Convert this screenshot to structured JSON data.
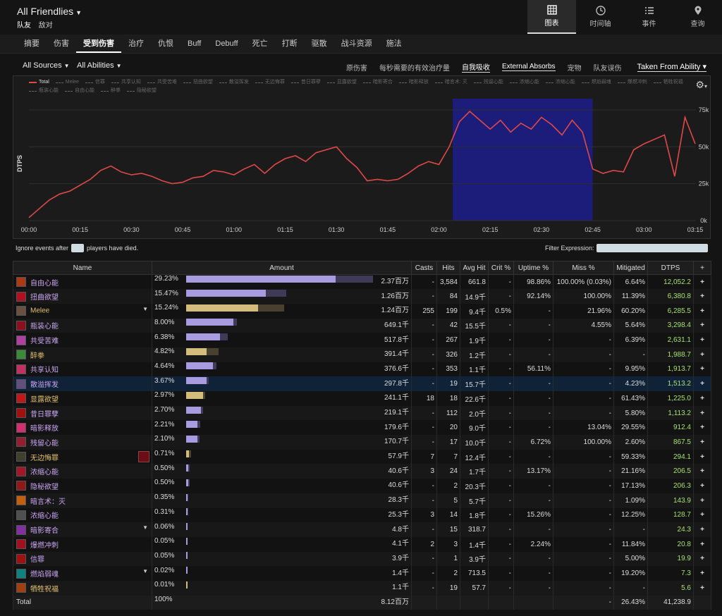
{
  "header": {
    "title": "All Friendlies",
    "subtabs": [
      "队友",
      "敌对"
    ]
  },
  "views": [
    {
      "label": "图表",
      "icon": "table-icon",
      "active": true
    },
    {
      "label": "时间轴",
      "icon": "clock-icon",
      "active": false
    },
    {
      "label": "事件",
      "icon": "list-icon",
      "active": false
    },
    {
      "label": "查询",
      "icon": "pin-icon",
      "active": false
    }
  ],
  "tabs": [
    {
      "label": "摘要"
    },
    {
      "label": "伤害"
    },
    {
      "label": "受到伤害",
      "active": true
    },
    {
      "label": "治疗"
    },
    {
      "label": "仇恨"
    },
    {
      "label": "Buff"
    },
    {
      "label": "Debuff"
    },
    {
      "label": "死亡"
    },
    {
      "label": "打断"
    },
    {
      "label": "驱散"
    },
    {
      "label": "战斗资源"
    },
    {
      "label": "施法"
    }
  ],
  "filters": {
    "sources": "All Sources",
    "abilities": "All Abilities",
    "options": [
      {
        "label": "原伤害",
        "state": "off"
      },
      {
        "label": "每秒需要的有效治疗量",
        "state": "off"
      },
      {
        "label": "自我吸收",
        "state": "on"
      },
      {
        "label": "External Absorbs",
        "state": "on"
      },
      {
        "label": "宠物",
        "state": "off"
      },
      {
        "label": "队友误伤",
        "state": "off"
      }
    ],
    "taken_from": "Taken From Ability"
  },
  "chart": {
    "legend": [
      "Total",
      "Melee",
      "信罪",
      "共享认知",
      "共受苦难",
      "扭曲欲望",
      "散溢挥发",
      "无边悔罪",
      "昔日罪孽",
      "显露欲望",
      "暗影寄合",
      "暗影释放",
      "暗言术: 灭",
      "残留心能",
      "浓缩心能",
      "浓缩心能",
      "燃焰弱魂",
      "爆燃冲刺",
      "牺牲祝福",
      "瓶装心能",
      "自由心能",
      "醉拳",
      "隐秘欲望"
    ],
    "ylabel": "DTPS"
  },
  "chart_data": {
    "type": "line",
    "ylabel": "DTPS",
    "xlim": [
      0,
      195
    ],
    "ylim": [
      0,
      85000
    ],
    "x_ticks": [
      "00:00",
      "00:15",
      "00:30",
      "00:45",
      "01:00",
      "01:15",
      "01:30",
      "01:45",
      "02:00",
      "02:15",
      "02:30",
      "02:45",
      "03:00",
      "03:15"
    ],
    "y_ticks": [
      "0k",
      "25k",
      "50k",
      "75k"
    ],
    "highlight": {
      "start": "02:04",
      "end": "02:45"
    },
    "series": [
      {
        "name": "Total",
        "color": "#e04848",
        "x": [
          0,
          3,
          6,
          9,
          12,
          15,
          18,
          21,
          24,
          27,
          30,
          33,
          36,
          39,
          42,
          45,
          48,
          51,
          54,
          57,
          60,
          63,
          66,
          69,
          72,
          75,
          78,
          81,
          84,
          87,
          90,
          93,
          96,
          99,
          102,
          105,
          108,
          111,
          114,
          117,
          120,
          123,
          126,
          129,
          132,
          135,
          138,
          141,
          144,
          147,
          150,
          153,
          156,
          159,
          162,
          165,
          168,
          171,
          174,
          177,
          180,
          183,
          186,
          189,
          192,
          195
        ],
        "y": [
          2000,
          8000,
          14000,
          18000,
          20000,
          24000,
          28000,
          34000,
          37000,
          33000,
          31000,
          32000,
          30000,
          27000,
          25000,
          26000,
          29000,
          30000,
          34000,
          33000,
          31000,
          35000,
          38000,
          32000,
          38000,
          42000,
          44000,
          40000,
          46000,
          48000,
          50000,
          42000,
          36000,
          27000,
          28000,
          27000,
          28000,
          32000,
          37000,
          40000,
          38000,
          50000,
          67000,
          74000,
          68000,
          62000,
          68000,
          60000,
          66000,
          62000,
          70000,
          65000,
          58000,
          68000,
          60000,
          35000,
          32000,
          34000,
          33000,
          48000,
          52000,
          55000,
          58000,
          30000,
          70000,
          52000
        ]
      }
    ]
  },
  "ignore": {
    "label_before": "Ignore events after",
    "label_after": "players have died.",
    "value": ""
  },
  "filter_expr": {
    "label": "Filter Expression:",
    "value": ""
  },
  "table": {
    "headers": [
      "Name",
      "Amount",
      "Casts",
      "Hits",
      "Avg Hit",
      "Crit %",
      "Uptime %",
      "Miss %",
      "Mitigated",
      "DTPS",
      "+"
    ],
    "rows": [
      {
        "name": "自由心能",
        "color": "#c9a6f2",
        "icon": "#a83a18",
        "pct": "29.23%",
        "amount": "2.37百万",
        "bar": 0.79,
        "bar2": 0.99,
        "barcolor": "#a99be0",
        "casts": "-",
        "hits": "3,584",
        "avg": "661.8",
        "crit": "-",
        "uptime": "98.86%",
        "miss": "100.00% (0.03%)",
        "mit": "6.64%",
        "dtps": "12,052.2"
      },
      {
        "name": "扭曲欲望",
        "color": "#c9a6f2",
        "icon": "#b01020",
        "pct": "15.47%",
        "amount": "1.26百万",
        "bar": 0.42,
        "bar2": 0.53,
        "barcolor": "#a99be0",
        "casts": "-",
        "hits": "84",
        "avg": "14.9千",
        "crit": "-",
        "uptime": "92.14%",
        "miss": "100.00%",
        "mit": "11.39%",
        "dtps": "6,380.8"
      },
      {
        "name": "Melee",
        "color": "#e0c070",
        "icon": "#6a5040",
        "pct": "15.24%",
        "amount": "1.24百万",
        "bar": 0.38,
        "bar2": 0.52,
        "barcolor": "#d4bc7c",
        "casts": "255",
        "hits": "199",
        "avg": "9.4千",
        "crit": "0.5%",
        "uptime": "-",
        "miss": "21.96%",
        "mit": "60.20%",
        "dtps": "6,285.5",
        "expand": true
      },
      {
        "name": "瓶装心能",
        "color": "#c9a6f2",
        "icon": "#8a1020",
        "pct": "8.00%",
        "amount": "649.1千",
        "bar": 0.25,
        "bar2": 0.27,
        "barcolor": "#a99be0",
        "casts": "-",
        "hits": "42",
        "avg": "15.5千",
        "crit": "-",
        "uptime": "-",
        "miss": "4.55%",
        "mit": "5.64%",
        "dtps": "3,298.4"
      },
      {
        "name": "共受苦难",
        "color": "#c9a6f2",
        "icon": "#b040a0",
        "pct": "6.38%",
        "amount": "517.8千",
        "bar": 0.18,
        "bar2": 0.22,
        "barcolor": "#a99be0",
        "casts": "-",
        "hits": "267",
        "avg": "1.9千",
        "crit": "-",
        "uptime": "-",
        "miss": "-",
        "mit": "6.39%",
        "dtps": "2,631.1"
      },
      {
        "name": "醉拳",
        "color": "#e0c070",
        "icon": "#3a8a3a",
        "pct": "4.82%",
        "amount": "391.4千",
        "bar": 0.11,
        "bar2": 0.17,
        "barcolor": "#d4bc7c",
        "casts": "-",
        "hits": "326",
        "avg": "1.2千",
        "crit": "-",
        "uptime": "-",
        "miss": "-",
        "mit": "-",
        "dtps": "1,988.7"
      },
      {
        "name": "共享认知",
        "color": "#c9a6f2",
        "icon": "#c03060",
        "pct": "4.64%",
        "amount": "376.6千",
        "bar": 0.14,
        "bar2": 0.16,
        "barcolor": "#a99be0",
        "casts": "-",
        "hits": "353",
        "avg": "1.1千",
        "crit": "-",
        "uptime": "56.11%",
        "miss": "-",
        "mit": "9.95%",
        "dtps": "1,913.7"
      },
      {
        "name": "散溢挥发",
        "color": "#c9a6f2",
        "icon": "#605080",
        "pct": "3.67%",
        "amount": "297.8千",
        "bar": 0.11,
        "bar2": 0.12,
        "barcolor": "#a99be0",
        "casts": "-",
        "hits": "19",
        "avg": "15.7千",
        "crit": "-",
        "uptime": "-",
        "miss": "-",
        "mit": "4.23%",
        "dtps": "1,513.2",
        "hl": true
      },
      {
        "name": "显露欲望",
        "color": "#e0c070",
        "icon": "#c01818",
        "pct": "2.97%",
        "amount": "241.1千",
        "bar": 0.09,
        "bar2": 0.1,
        "barcolor": "#d4bc7c",
        "casts": "18",
        "hits": "18",
        "avg": "22.6千",
        "crit": "-",
        "uptime": "-",
        "miss": "-",
        "mit": "61.43%",
        "dtps": "1,225.0"
      },
      {
        "name": "昔日罪孽",
        "color": "#c9a6f2",
        "icon": "#a01010",
        "pct": "2.70%",
        "amount": "219.1千",
        "bar": 0.08,
        "bar2": 0.09,
        "barcolor": "#a99be0",
        "casts": "-",
        "hits": "112",
        "avg": "2.0千",
        "crit": "-",
        "uptime": "-",
        "miss": "-",
        "mit": "5.80%",
        "dtps": "1,113.2"
      },
      {
        "name": "暗影释放",
        "color": "#c9a6f2",
        "icon": "#d03070",
        "pct": "2.21%",
        "amount": "179.6千",
        "bar": 0.06,
        "bar2": 0.075,
        "barcolor": "#a99be0",
        "casts": "-",
        "hits": "20",
        "avg": "9.0千",
        "crit": "-",
        "uptime": "-",
        "miss": "13.04%",
        "mit": "29.55%",
        "dtps": "912.4"
      },
      {
        "name": "残留心能",
        "color": "#c9a6f2",
        "icon": "#902030",
        "pct": "2.10%",
        "amount": "170.7千",
        "bar": 0.06,
        "bar2": 0.07,
        "barcolor": "#a99be0",
        "casts": "-",
        "hits": "17",
        "avg": "10.0千",
        "crit": "-",
        "uptime": "6.72%",
        "miss": "100.00%",
        "mit": "2.60%",
        "dtps": "867.5"
      },
      {
        "name": "无边悔罪",
        "color": "#e0c070",
        "icon": "#404030",
        "pct": "0.71%",
        "amount": "57.9千",
        "bar": 0.015,
        "bar2": 0.025,
        "barcolor": "#d4bc7c",
        "casts": "7",
        "hits": "7",
        "avg": "12.4千",
        "crit": "-",
        "uptime": "-",
        "miss": "-",
        "mit": "59.33%",
        "dtps": "294.1",
        "icon2": true
      },
      {
        "name": "浓缩心能",
        "color": "#c9a6f2",
        "icon": "#a01828",
        "pct": "0.50%",
        "amount": "40.6千",
        "bar": 0.01,
        "bar2": 0.017,
        "barcolor": "#a99be0",
        "casts": "3",
        "hits": "24",
        "avg": "1.7千",
        "crit": "-",
        "uptime": "13.17%",
        "miss": "-",
        "mit": "21.16%",
        "dtps": "206.5"
      },
      {
        "name": "隐秘欲望",
        "color": "#c9a6f2",
        "icon": "#901818",
        "pct": "0.50%",
        "amount": "40.6千",
        "bar": 0.01,
        "bar2": 0.017,
        "barcolor": "#a99be0",
        "casts": "-",
        "hits": "2",
        "avg": "20.3千",
        "crit": "-",
        "uptime": "-",
        "miss": "-",
        "mit": "17.13%",
        "dtps": "206.3"
      },
      {
        "name": "暗言术：灭",
        "color": "#c9a6f2",
        "icon": "#c06010",
        "pct": "0.35%",
        "amount": "28.3千",
        "bar": 0.005,
        "bar2": 0.012,
        "barcolor": "#a99be0",
        "casts": "-",
        "hits": "5",
        "avg": "5.7千",
        "crit": "-",
        "uptime": "-",
        "miss": "-",
        "mit": "1.09%",
        "dtps": "143.9"
      },
      {
        "name": "浓缩心能",
        "color": "#c9a6f2",
        "icon": "#505050",
        "pct": "0.31%",
        "amount": "25.3千",
        "bar": 0.005,
        "bar2": 0.01,
        "barcolor": "#a99be0",
        "casts": "3",
        "hits": "14",
        "avg": "1.8千",
        "crit": "-",
        "uptime": "15.26%",
        "miss": "-",
        "mit": "12.25%",
        "dtps": "128.7"
      },
      {
        "name": "暗影寄合",
        "color": "#c9a6f2",
        "icon": "#8030a0",
        "pct": "0.06%",
        "amount": "4.8千",
        "bar": 0.002,
        "bar2": 0.004,
        "barcolor": "#a99be0",
        "casts": "-",
        "hits": "15",
        "avg": "318.7",
        "crit": "-",
        "uptime": "-",
        "miss": "-",
        "mit": "-",
        "dtps": "24.3",
        "expand": true
      },
      {
        "name": "爆燃冲刺",
        "color": "#c9a6f2",
        "icon": "#a01020",
        "pct": "0.05%",
        "amount": "4.1千",
        "bar": 0.002,
        "bar2": 0.004,
        "barcolor": "#a99be0",
        "casts": "2",
        "hits": "3",
        "avg": "1.4千",
        "crit": "-",
        "uptime": "2.24%",
        "miss": "-",
        "mit": "11.84%",
        "dtps": "20.8"
      },
      {
        "name": "信罪",
        "color": "#c9a6f2",
        "icon": "#a01010",
        "pct": "0.05%",
        "amount": "3.9千",
        "bar": 0.002,
        "bar2": 0.004,
        "barcolor": "#a99be0",
        "casts": "-",
        "hits": "1",
        "avg": "3.9千",
        "crit": "-",
        "uptime": "-",
        "miss": "-",
        "mit": "5.00%",
        "dtps": "19.9"
      },
      {
        "name": "燃焰弱魂",
        "color": "#c9a6f2",
        "icon": "#108080",
        "pct": "0.02%",
        "amount": "1.4千",
        "bar": 0.001,
        "bar2": 0.003,
        "barcolor": "#a99be0",
        "casts": "-",
        "hits": "2",
        "avg": "713.5",
        "crit": "-",
        "uptime": "-",
        "miss": "-",
        "mit": "19.20%",
        "dtps": "7.3",
        "expand": true
      },
      {
        "name": "牺牲祝福",
        "color": "#e0c070",
        "icon": "#a04010",
        "pct": "0.01%",
        "amount": "1.1千",
        "bar": 0.001,
        "bar2": 0.003,
        "barcolor": "#d4bc7c",
        "casts": "-",
        "hits": "19",
        "avg": "57.7",
        "crit": "-",
        "uptime": "-",
        "miss": "-",
        "mit": "-",
        "dtps": "5.6"
      }
    ],
    "total": {
      "name": "Total",
      "pct": "100%",
      "amount": "8.12百万",
      "mit": "26.43%",
      "dash": "-",
      "dtps": "41,238.9"
    }
  }
}
